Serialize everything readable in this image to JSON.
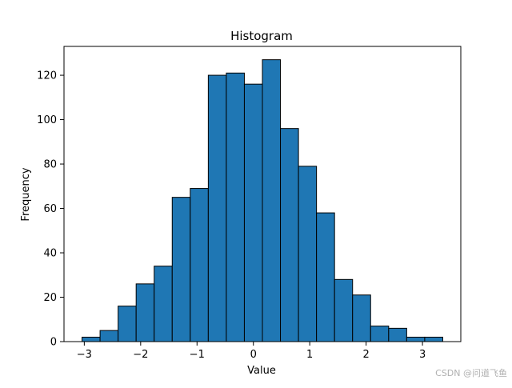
{
  "chart_data": {
    "type": "bar",
    "title": "Histogram",
    "xlabel": "Value",
    "ylabel": "Frequency",
    "bins": [
      {
        "x0": -3.04,
        "x1": -2.72,
        "count": 2
      },
      {
        "x0": -2.72,
        "x1": -2.4,
        "count": 5
      },
      {
        "x0": -2.4,
        "x1": -2.08,
        "count": 16
      },
      {
        "x0": -2.08,
        "x1": -1.76,
        "count": 26
      },
      {
        "x0": -1.76,
        "x1": -1.44,
        "count": 34
      },
      {
        "x0": -1.44,
        "x1": -1.12,
        "count": 65
      },
      {
        "x0": -1.12,
        "x1": -0.8,
        "count": 69
      },
      {
        "x0": -0.8,
        "x1": -0.48,
        "count": 120
      },
      {
        "x0": -0.48,
        "x1": -0.16,
        "count": 121
      },
      {
        "x0": -0.16,
        "x1": 0.16,
        "count": 116
      },
      {
        "x0": 0.16,
        "x1": 0.48,
        "count": 127
      },
      {
        "x0": 0.48,
        "x1": 0.8,
        "count": 96
      },
      {
        "x0": 0.8,
        "x1": 1.12,
        "count": 79
      },
      {
        "x0": 1.12,
        "x1": 1.44,
        "count": 58
      },
      {
        "x0": 1.44,
        "x1": 1.76,
        "count": 28
      },
      {
        "x0": 1.76,
        "x1": 2.08,
        "count": 21
      },
      {
        "x0": 2.08,
        "x1": 2.4,
        "count": 7
      },
      {
        "x0": 2.4,
        "x1": 2.72,
        "count": 6
      },
      {
        "x0": 2.72,
        "x1": 3.04,
        "count": 2
      },
      {
        "x0": 3.04,
        "x1": 3.36,
        "count": 2
      }
    ],
    "xlim": [
      -3.36,
      3.68
    ],
    "ylim": [
      0,
      133
    ],
    "xticks": [
      -3,
      -2,
      -1,
      0,
      1,
      2,
      3
    ],
    "xtick_labels": [
      "−3",
      "−2",
      "−1",
      "0",
      "1",
      "2",
      "3"
    ],
    "yticks": [
      0,
      20,
      40,
      60,
      80,
      100,
      120
    ],
    "bar_color": "#1f77b4",
    "edge_color": "#000000",
    "grid": false,
    "legend": "none"
  },
  "watermark": "CSDN @问道飞鱼"
}
